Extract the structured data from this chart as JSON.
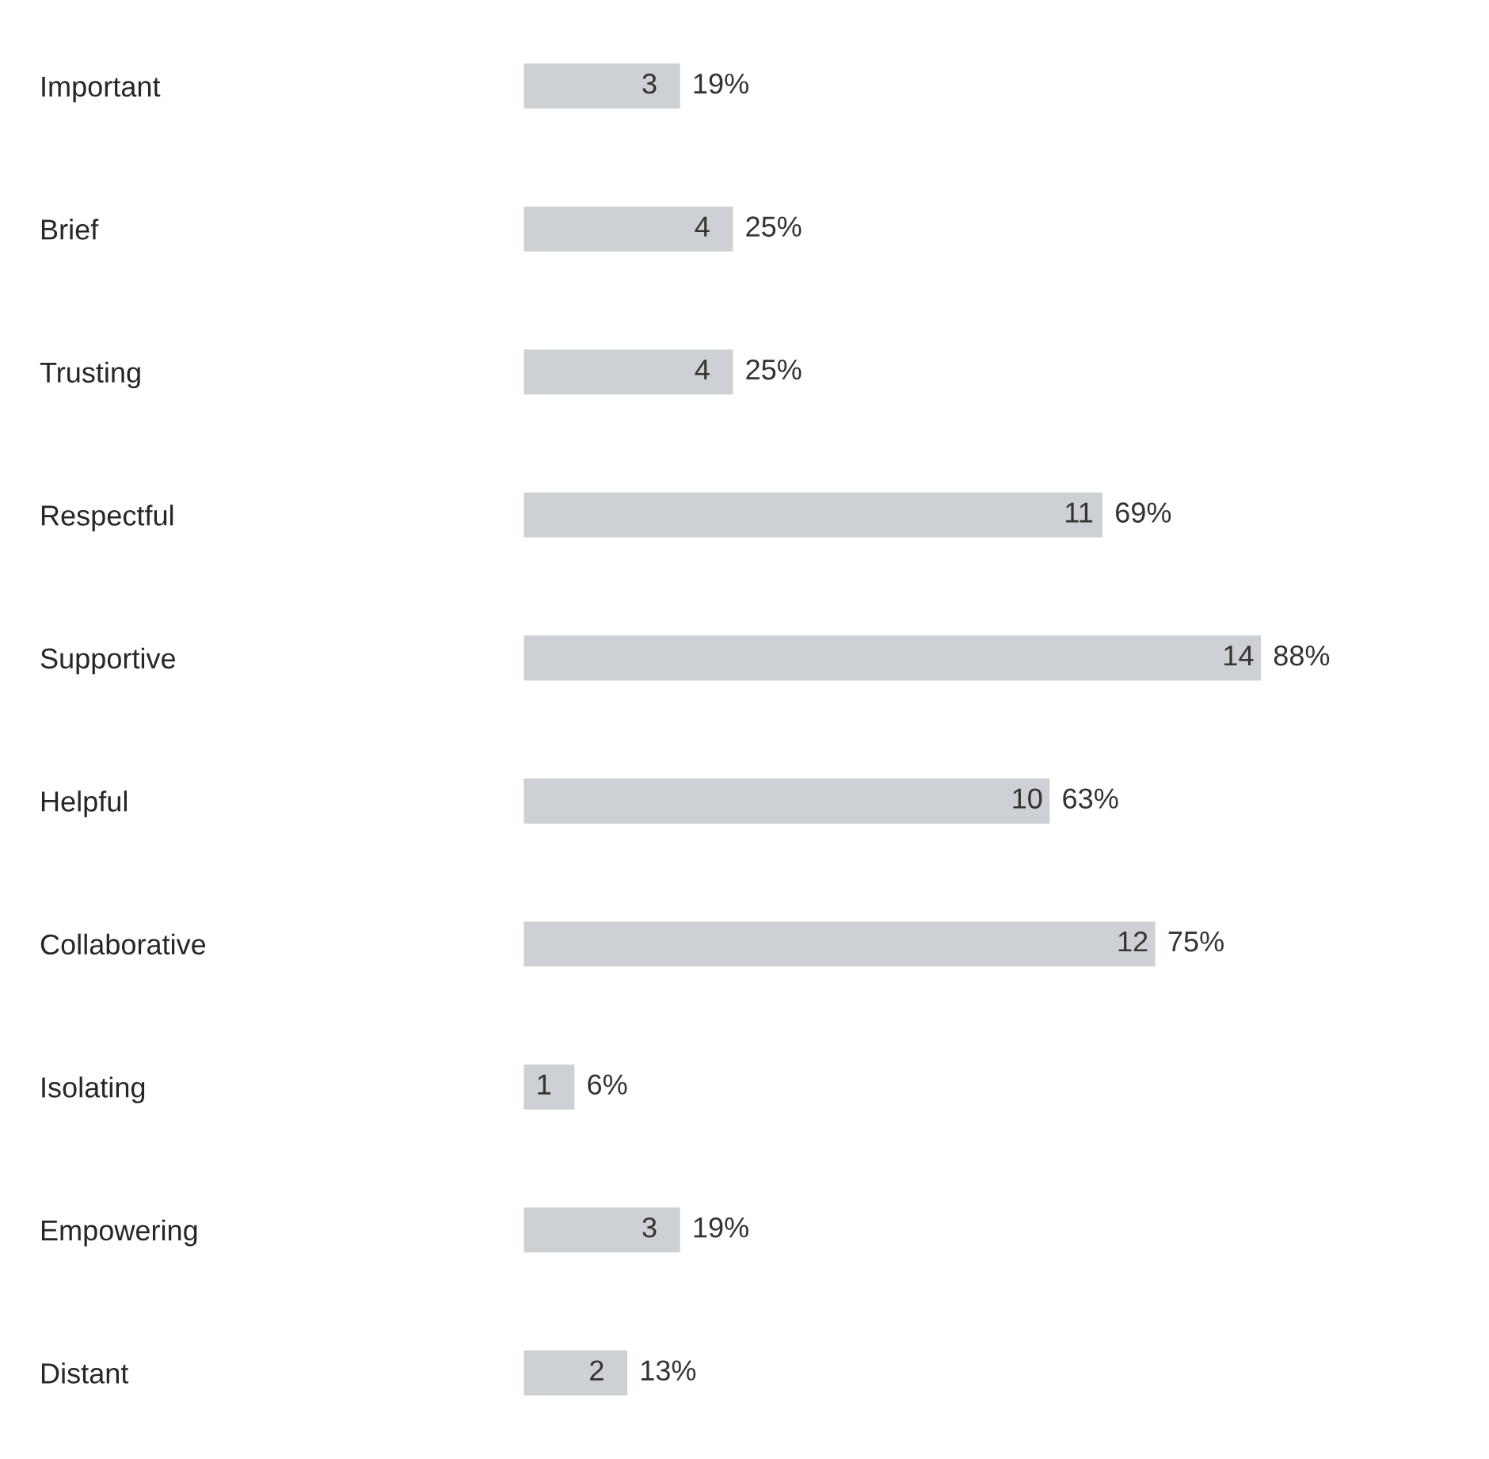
{
  "chart_data": {
    "type": "bar",
    "orientation": "horizontal",
    "categories": [
      "Important",
      "Brief",
      "Trusting",
      "Respectful",
      "Supportive",
      "Helpful",
      "Collaborative",
      "Isolating",
      "Empowering",
      "Distant"
    ],
    "values": [
      3,
      4,
      4,
      11,
      14,
      10,
      12,
      1,
      3,
      2
    ],
    "color": "#cdd0d4",
    "data_labels": true,
    "annotations": [
      {
        "text": "19%",
        "x": 3,
        "y": "Important"
      },
      {
        "text": "25%",
        "x": 4,
        "y": "Brief"
      },
      {
        "text": "25%",
        "x": 4,
        "y": "Trusting"
      },
      {
        "text": "69%",
        "x": 11,
        "y": "Respectful"
      },
      {
        "text": "88%",
        "x": 14,
        "y": "Supportive"
      },
      {
        "text": "63%",
        "x": 10,
        "y": "Helpful"
      },
      {
        "text": "75%",
        "x": 12,
        "y": "Collaborative"
      },
      {
        "text": "6%",
        "x": 1,
        "y": "Isolating"
      },
      {
        "text": "19%",
        "x": 3,
        "y": "Empowering"
      },
      {
        "text": "13%",
        "x": 2,
        "y": "Distant"
      }
    ],
    "grid": false,
    "legend": false
  }
}
